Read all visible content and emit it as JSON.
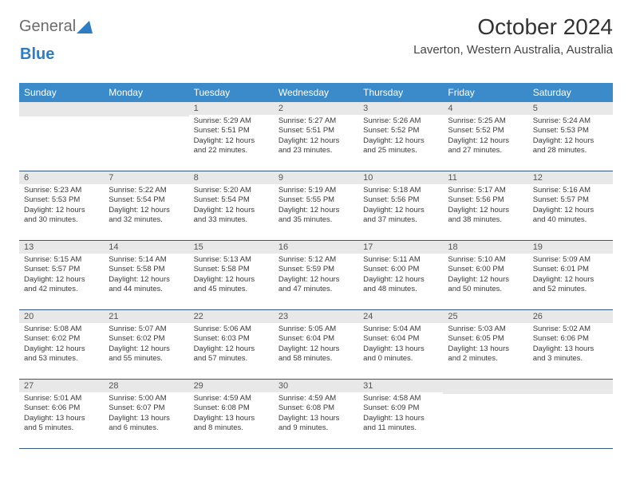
{
  "logo": {
    "text1": "General",
    "text2": "Blue"
  },
  "title": "October 2024",
  "location": "Laverton, Western Australia, Australia",
  "colors": {
    "header_bg": "#3b8ac9",
    "daynum_bg": "#e8e8e8",
    "border": "#335a87"
  },
  "day_names": [
    "Sunday",
    "Monday",
    "Tuesday",
    "Wednesday",
    "Thursday",
    "Friday",
    "Saturday"
  ],
  "weeks": [
    [
      null,
      null,
      {
        "n": "1",
        "sr": "5:29 AM",
        "ss": "5:51 PM",
        "dl": "12 hours and 22 minutes."
      },
      {
        "n": "2",
        "sr": "5:27 AM",
        "ss": "5:51 PM",
        "dl": "12 hours and 23 minutes."
      },
      {
        "n": "3",
        "sr": "5:26 AM",
        "ss": "5:52 PM",
        "dl": "12 hours and 25 minutes."
      },
      {
        "n": "4",
        "sr": "5:25 AM",
        "ss": "5:52 PM",
        "dl": "12 hours and 27 minutes."
      },
      {
        "n": "5",
        "sr": "5:24 AM",
        "ss": "5:53 PM",
        "dl": "12 hours and 28 minutes."
      }
    ],
    [
      {
        "n": "6",
        "sr": "5:23 AM",
        "ss": "5:53 PM",
        "dl": "12 hours and 30 minutes."
      },
      {
        "n": "7",
        "sr": "5:22 AM",
        "ss": "5:54 PM",
        "dl": "12 hours and 32 minutes."
      },
      {
        "n": "8",
        "sr": "5:20 AM",
        "ss": "5:54 PM",
        "dl": "12 hours and 33 minutes."
      },
      {
        "n": "9",
        "sr": "5:19 AM",
        "ss": "5:55 PM",
        "dl": "12 hours and 35 minutes."
      },
      {
        "n": "10",
        "sr": "5:18 AM",
        "ss": "5:56 PM",
        "dl": "12 hours and 37 minutes."
      },
      {
        "n": "11",
        "sr": "5:17 AM",
        "ss": "5:56 PM",
        "dl": "12 hours and 38 minutes."
      },
      {
        "n": "12",
        "sr": "5:16 AM",
        "ss": "5:57 PM",
        "dl": "12 hours and 40 minutes."
      }
    ],
    [
      {
        "n": "13",
        "sr": "5:15 AM",
        "ss": "5:57 PM",
        "dl": "12 hours and 42 minutes."
      },
      {
        "n": "14",
        "sr": "5:14 AM",
        "ss": "5:58 PM",
        "dl": "12 hours and 44 minutes."
      },
      {
        "n": "15",
        "sr": "5:13 AM",
        "ss": "5:58 PM",
        "dl": "12 hours and 45 minutes."
      },
      {
        "n": "16",
        "sr": "5:12 AM",
        "ss": "5:59 PM",
        "dl": "12 hours and 47 minutes."
      },
      {
        "n": "17",
        "sr": "5:11 AM",
        "ss": "6:00 PM",
        "dl": "12 hours and 48 minutes."
      },
      {
        "n": "18",
        "sr": "5:10 AM",
        "ss": "6:00 PM",
        "dl": "12 hours and 50 minutes."
      },
      {
        "n": "19",
        "sr": "5:09 AM",
        "ss": "6:01 PM",
        "dl": "12 hours and 52 minutes."
      }
    ],
    [
      {
        "n": "20",
        "sr": "5:08 AM",
        "ss": "6:02 PM",
        "dl": "12 hours and 53 minutes."
      },
      {
        "n": "21",
        "sr": "5:07 AM",
        "ss": "6:02 PM",
        "dl": "12 hours and 55 minutes."
      },
      {
        "n": "22",
        "sr": "5:06 AM",
        "ss": "6:03 PM",
        "dl": "12 hours and 57 minutes."
      },
      {
        "n": "23",
        "sr": "5:05 AM",
        "ss": "6:04 PM",
        "dl": "12 hours and 58 minutes."
      },
      {
        "n": "24",
        "sr": "5:04 AM",
        "ss": "6:04 PM",
        "dl": "13 hours and 0 minutes."
      },
      {
        "n": "25",
        "sr": "5:03 AM",
        "ss": "6:05 PM",
        "dl": "13 hours and 2 minutes."
      },
      {
        "n": "26",
        "sr": "5:02 AM",
        "ss": "6:06 PM",
        "dl": "13 hours and 3 minutes."
      }
    ],
    [
      {
        "n": "27",
        "sr": "5:01 AM",
        "ss": "6:06 PM",
        "dl": "13 hours and 5 minutes."
      },
      {
        "n": "28",
        "sr": "5:00 AM",
        "ss": "6:07 PM",
        "dl": "13 hours and 6 minutes."
      },
      {
        "n": "29",
        "sr": "4:59 AM",
        "ss": "6:08 PM",
        "dl": "13 hours and 8 minutes."
      },
      {
        "n": "30",
        "sr": "4:59 AM",
        "ss": "6:08 PM",
        "dl": "13 hours and 9 minutes."
      },
      {
        "n": "31",
        "sr": "4:58 AM",
        "ss": "6:09 PM",
        "dl": "13 hours and 11 minutes."
      },
      null,
      null
    ]
  ]
}
